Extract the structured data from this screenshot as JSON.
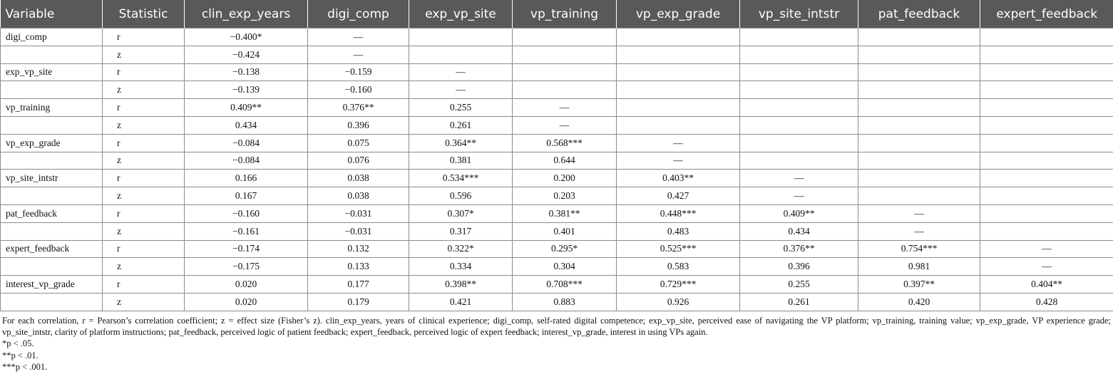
{
  "chart_data": {
    "type": "table",
    "columns": [
      "Variable",
      "Statistic",
      "clin_exp_years",
      "digi_comp",
      "exp_vp_site",
      "vp_training",
      "vp_exp_grade",
      "vp_site_intstr",
      "pat_feedback",
      "expert_feedback"
    ],
    "rows": [
      {
        "variable": "digi_comp",
        "statistic": "r",
        "cells": [
          "−0.400*",
          "—",
          "",
          "",
          "",
          "",
          "",
          ""
        ]
      },
      {
        "variable": "",
        "statistic": "z",
        "cells": [
          "−0.424",
          "—",
          "",
          "",
          "",
          "",
          "",
          ""
        ]
      },
      {
        "variable": "exp_vp_site",
        "statistic": "r",
        "cells": [
          "−0.138",
          "−0.159",
          "—",
          "",
          "",
          "",
          "",
          ""
        ]
      },
      {
        "variable": "",
        "statistic": "z",
        "cells": [
          "−0.139",
          "−0.160",
          "—",
          "",
          "",
          "",
          "",
          ""
        ]
      },
      {
        "variable": "vp_training",
        "statistic": "r",
        "cells": [
          "0.409**",
          "0.376**",
          "0.255",
          "—",
          "",
          "",
          "",
          ""
        ]
      },
      {
        "variable": "",
        "statistic": "z",
        "cells": [
          "0.434",
          "0.396",
          "0.261",
          "—",
          "",
          "",
          "",
          ""
        ]
      },
      {
        "variable": "vp_exp_grade",
        "statistic": "r",
        "cells": [
          "−0.084",
          "0.075",
          "0.364**",
          "0.568***",
          "—",
          "",
          "",
          ""
        ]
      },
      {
        "variable": "",
        "statistic": "z",
        "cells": [
          "−0.084",
          "0.076",
          "0.381",
          "0.644",
          "—",
          "",
          "",
          ""
        ]
      },
      {
        "variable": "vp_site_intstr",
        "statistic": "r",
        "cells": [
          "0.166",
          "0.038",
          "0.534***",
          "0.200",
          "0.403**",
          "—",
          "",
          ""
        ]
      },
      {
        "variable": "",
        "statistic": "z",
        "cells": [
          "0.167",
          "0.038",
          "0.596",
          "0.203",
          "0.427",
          "—",
          "",
          ""
        ]
      },
      {
        "variable": "pat_feedback",
        "statistic": "r",
        "cells": [
          "−0.160",
          "−0.031",
          "0.307*",
          "0.381**",
          "0.448***",
          "0.409**",
          "—",
          ""
        ]
      },
      {
        "variable": "",
        "statistic": "z",
        "cells": [
          "−0.161",
          "−0.031",
          "0.317",
          "0.401",
          "0.483",
          "0.434",
          "—",
          ""
        ]
      },
      {
        "variable": "expert_feedback",
        "statistic": "r",
        "cells": [
          "−0.174",
          "0.132",
          "0.322*",
          "0.295*",
          "0.525***",
          "0.376**",
          "0.754***",
          "—"
        ]
      },
      {
        "variable": "",
        "statistic": "z",
        "cells": [
          "−0.175",
          "0.133",
          "0.334",
          "0.304",
          "0.583",
          "0.396",
          "0.981",
          "—"
        ]
      },
      {
        "variable": "interest_vp_grade",
        "statistic": "r",
        "cells": [
          "0.020",
          "0.177",
          "0.398**",
          "0.708***",
          "0.729***",
          "0.255",
          "0.397**",
          "0.404**"
        ]
      },
      {
        "variable": "",
        "statistic": "z",
        "cells": [
          "0.020",
          "0.179",
          "0.421",
          "0.883",
          "0.926",
          "0.261",
          "0.420",
          "0.428"
        ]
      }
    ]
  },
  "style": {
    "header_bg": "#58595b",
    "header_text": "#ffffff",
    "border": "#8c8c8c",
    "text": "#111111"
  },
  "notes": {
    "main": "For each correlation, r = Pearson’s correlation coefficient; z = effect size (Fisher’s z). clin_exp_years, years of clinical experience; digi_comp, self-rated digital competence; exp_vp_site, perceived ease of navigating the VP platform; vp_training, training value; vp_exp_grade, VP experience grade; vp_site_intstr, clarity of platform instructions; pat_feedback, perceived logic of patient feedback; expert_feedback, perceived logic of expert feedback; interest_vp_grade, interest in using VPs again.",
    "footnotes": [
      "*p < .05.",
      "**p < .01.",
      "***p < .001."
    ]
  }
}
